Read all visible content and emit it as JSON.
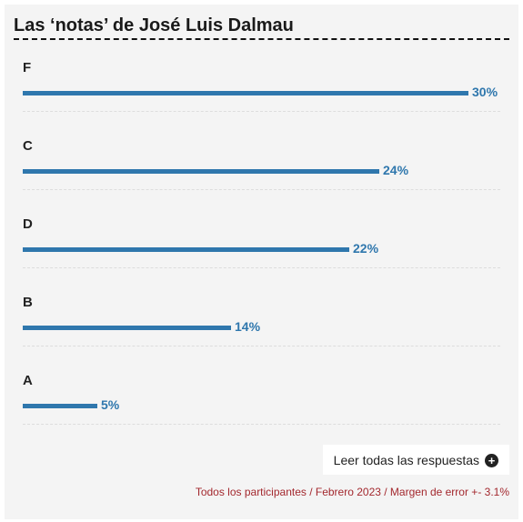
{
  "chart_data": {
    "type": "bar",
    "orientation": "horizontal",
    "title": "Las ‘notas’ de José Luis Dalmau",
    "categories": [
      "F",
      "C",
      "D",
      "B",
      "A"
    ],
    "values": [
      30,
      24,
      22,
      14,
      5
    ],
    "value_suffix": "%",
    "value_labels": [
      "30%",
      "24%",
      "22%",
      "14%",
      "5%"
    ],
    "xlim": [
      0,
      30
    ],
    "grid": false,
    "bar_color": "#2f77ad"
  },
  "actions": {
    "more_label": "Leer todas las respuestas",
    "more_icon": "plus-circle-icon"
  },
  "footer": {
    "note": "Todos los participantes / Febrero 2023 / Margen de error +- 3.1%"
  },
  "colors": {
    "accent": "#2f77ad",
    "footer_text": "#a3282e",
    "panel_bg": "#f4f4f4"
  }
}
